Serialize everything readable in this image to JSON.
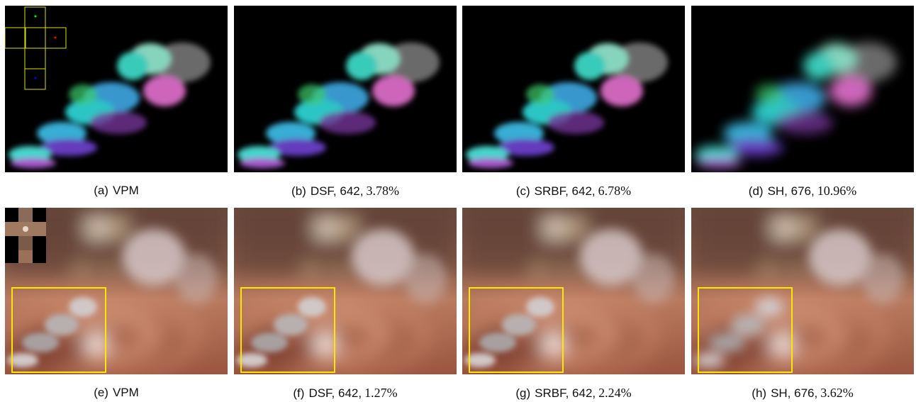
{
  "panels": [
    {
      "tag": "(a)",
      "text": "VPM",
      "metric": null
    },
    {
      "tag": "(b)",
      "text": "DSF, 642,",
      "metric": "3.78%"
    },
    {
      "tag": "(c)",
      "text": "SRBF, 642,",
      "metric": "6.78%"
    },
    {
      "tag": "(d)",
      "text": "SH, 676,",
      "metric": "10.96%"
    },
    {
      "tag": "(e)",
      "text": "VPM",
      "metric": null
    },
    {
      "tag": "(f)",
      "text": "DSF, 642,",
      "metric": "1.27%"
    },
    {
      "tag": "(g)",
      "text": "SRBF, 642,",
      "metric": "2.24%"
    },
    {
      "tag": "(h)",
      "text": "SH, 676,",
      "metric": "3.62%"
    }
  ]
}
